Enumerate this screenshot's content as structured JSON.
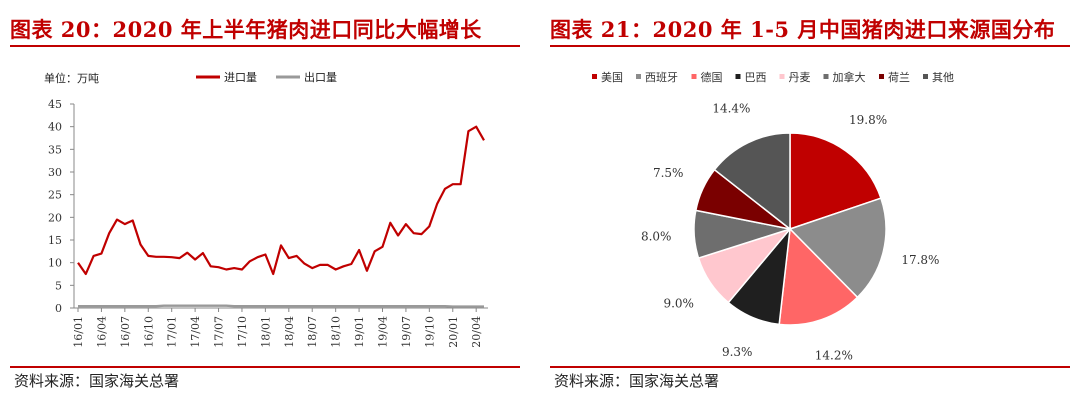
{
  "left": {
    "title": "图表 20：2020 年上半年猪肉进口同比大幅增长",
    "source": "资料来源：国家海关总署"
  },
  "right": {
    "title": "图表 21：2020 年 1-5 月中国猪肉进口来源国分布",
    "source": "资料来源：国家海关总署"
  },
  "colors": {
    "accent": "#c00000",
    "import_line": "#c00000",
    "export_line": "#999999"
  },
  "chart_data": [
    {
      "type": "line",
      "unit_label": "单位：万吨",
      "x": [
        "16/01",
        "16/02",
        "16/03",
        "16/04",
        "16/05",
        "16/06",
        "16/07",
        "16/08",
        "16/09",
        "16/10",
        "16/11",
        "16/12",
        "17/01",
        "17/02",
        "17/03",
        "17/04",
        "17/05",
        "17/06",
        "17/07",
        "17/08",
        "17/09",
        "17/10",
        "17/11",
        "17/12",
        "18/01",
        "18/02",
        "18/03",
        "18/04",
        "18/05",
        "18/06",
        "18/07",
        "18/08",
        "18/09",
        "18/10",
        "18/11",
        "18/12",
        "19/01",
        "19/02",
        "19/03",
        "19/04",
        "19/05",
        "19/06",
        "19/07",
        "19/08",
        "19/09",
        "19/10",
        "19/11",
        "19/12",
        "20/01",
        "20/02",
        "20/03",
        "20/04",
        "20/05"
      ],
      "xticks": [
        "16/01",
        "16/04",
        "16/07",
        "16/10",
        "17/01",
        "17/04",
        "17/07",
        "17/10",
        "18/01",
        "18/04",
        "18/07",
        "18/10",
        "19/01",
        "19/04",
        "19/07",
        "19/10",
        "20/01",
        "20/04"
      ],
      "ylim": [
        0,
        45
      ],
      "yticks": [
        0,
        5,
        10,
        15,
        20,
        25,
        30,
        35,
        40,
        45
      ],
      "legend_position": "top",
      "series": [
        {
          "name": "进口量",
          "color": "#c00000",
          "values": [
            10,
            7.5,
            11.5,
            12,
            16.5,
            19.5,
            18.5,
            19.3,
            14,
            11.5,
            11.3,
            11.3,
            11.2,
            11,
            12.2,
            10.7,
            12.1,
            9.2,
            9,
            8.5,
            8.8,
            8.5,
            10.3,
            11.2,
            11.8,
            7.5,
            13.8,
            11,
            11.5,
            9.8,
            8.8,
            9.5,
            9.5,
            8.5,
            9.2,
            9.7,
            12.8,
            8.2,
            12.5,
            13.5,
            18.8,
            16,
            18.5,
            16.5,
            16.3,
            18,
            23,
            26.3,
            27.3,
            27.3,
            39,
            40,
            37
          ]
        },
        {
          "name": "出口量",
          "color": "#999999",
          "values": [
            0.4,
            0.4,
            0.4,
            0.4,
            0.4,
            0.4,
            0.4,
            0.4,
            0.4,
            0.4,
            0.4,
            0.5,
            0.5,
            0.5,
            0.5,
            0.5,
            0.5,
            0.5,
            0.5,
            0.5,
            0.4,
            0.4,
            0.4,
            0.4,
            0.4,
            0.4,
            0.4,
            0.4,
            0.4,
            0.4,
            0.4,
            0.4,
            0.4,
            0.4,
            0.4,
            0.4,
            0.4,
            0.4,
            0.4,
            0.4,
            0.4,
            0.4,
            0.4,
            0.4,
            0.4,
            0.4,
            0.4,
            0.4,
            0.3,
            0.3,
            0.3,
            0.3,
            0.3
          ]
        }
      ]
    },
    {
      "type": "pie",
      "legend_position": "top",
      "slices": [
        {
          "name": "美国",
          "value": 19.8,
          "label": "19.8%",
          "color": "#c00000"
        },
        {
          "name": "西班牙",
          "value": 17.8,
          "label": "17.8%",
          "color": "#8c8c8c"
        },
        {
          "name": "德国",
          "value": 14.2,
          "label": "14.2%",
          "color": "#ff6666"
        },
        {
          "name": "巴西",
          "value": 9.3,
          "label": "9.3%",
          "color": "#1f1f1f"
        },
        {
          "name": "丹麦",
          "value": 9.0,
          "label": "9.0%",
          "color": "#ffc7ce"
        },
        {
          "name": "加拿大",
          "value": 8.0,
          "label": "8.0%",
          "color": "#6e6e6e"
        },
        {
          "name": "荷兰",
          "value": 7.5,
          "label": "7.5%",
          "color": "#7a0000"
        },
        {
          "name": "其他",
          "value": 14.4,
          "label": "14.4%",
          "color": "#555555"
        }
      ]
    }
  ]
}
